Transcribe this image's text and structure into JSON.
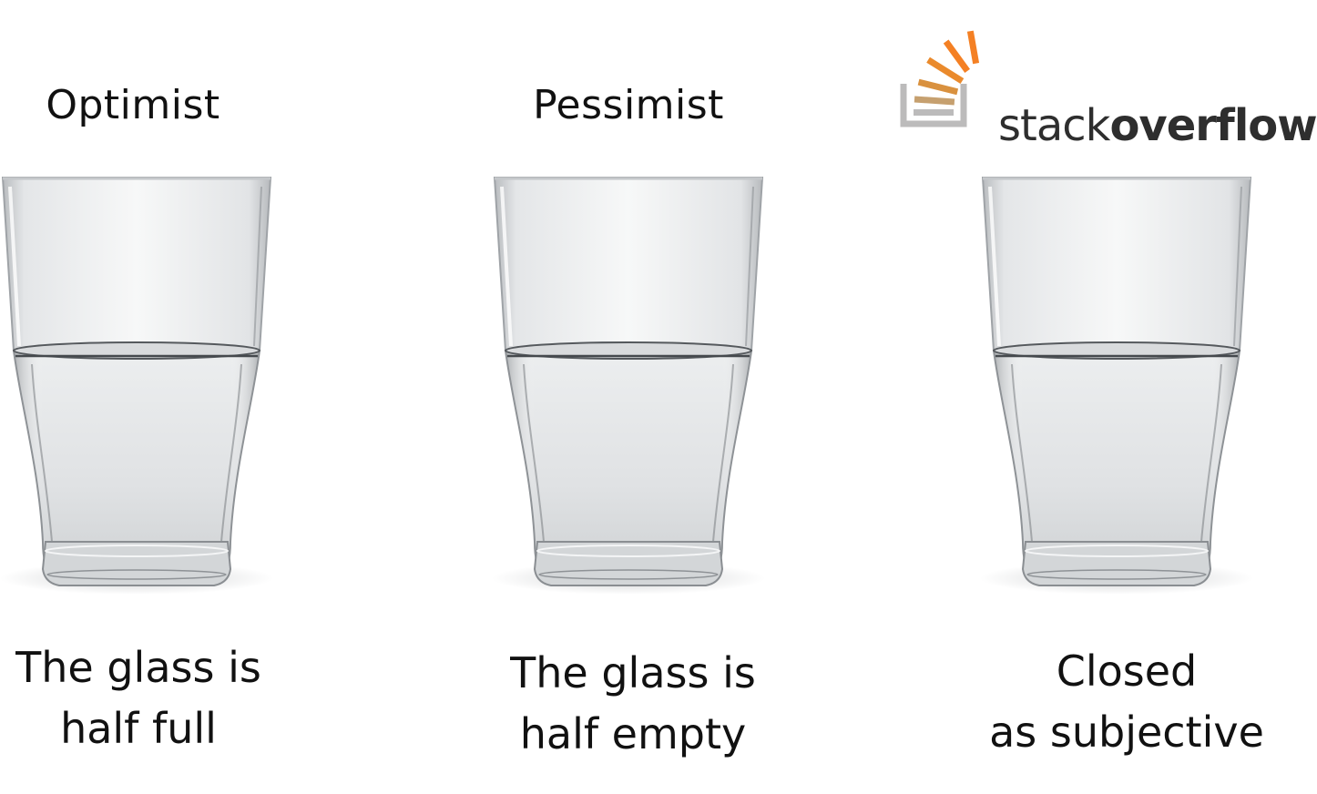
{
  "panels": [
    {
      "heading": "Optimist",
      "caption_line1": "The glass is",
      "caption_line2": "half full"
    },
    {
      "heading": "Pessimist",
      "caption_line1": "The glass is",
      "caption_line2": "half empty"
    },
    {
      "logo_text_light": "stack",
      "logo_text_bold": "overflow",
      "caption_line1": "Closed",
      "caption_line2": "as subjective"
    }
  ],
  "icons": {
    "glass": "water-glass-icon",
    "logo": "stackoverflow-logo-icon"
  },
  "colors": {
    "logo_orange": "#f48024",
    "logo_gray": "#bcbbbb",
    "text": "#111111"
  }
}
